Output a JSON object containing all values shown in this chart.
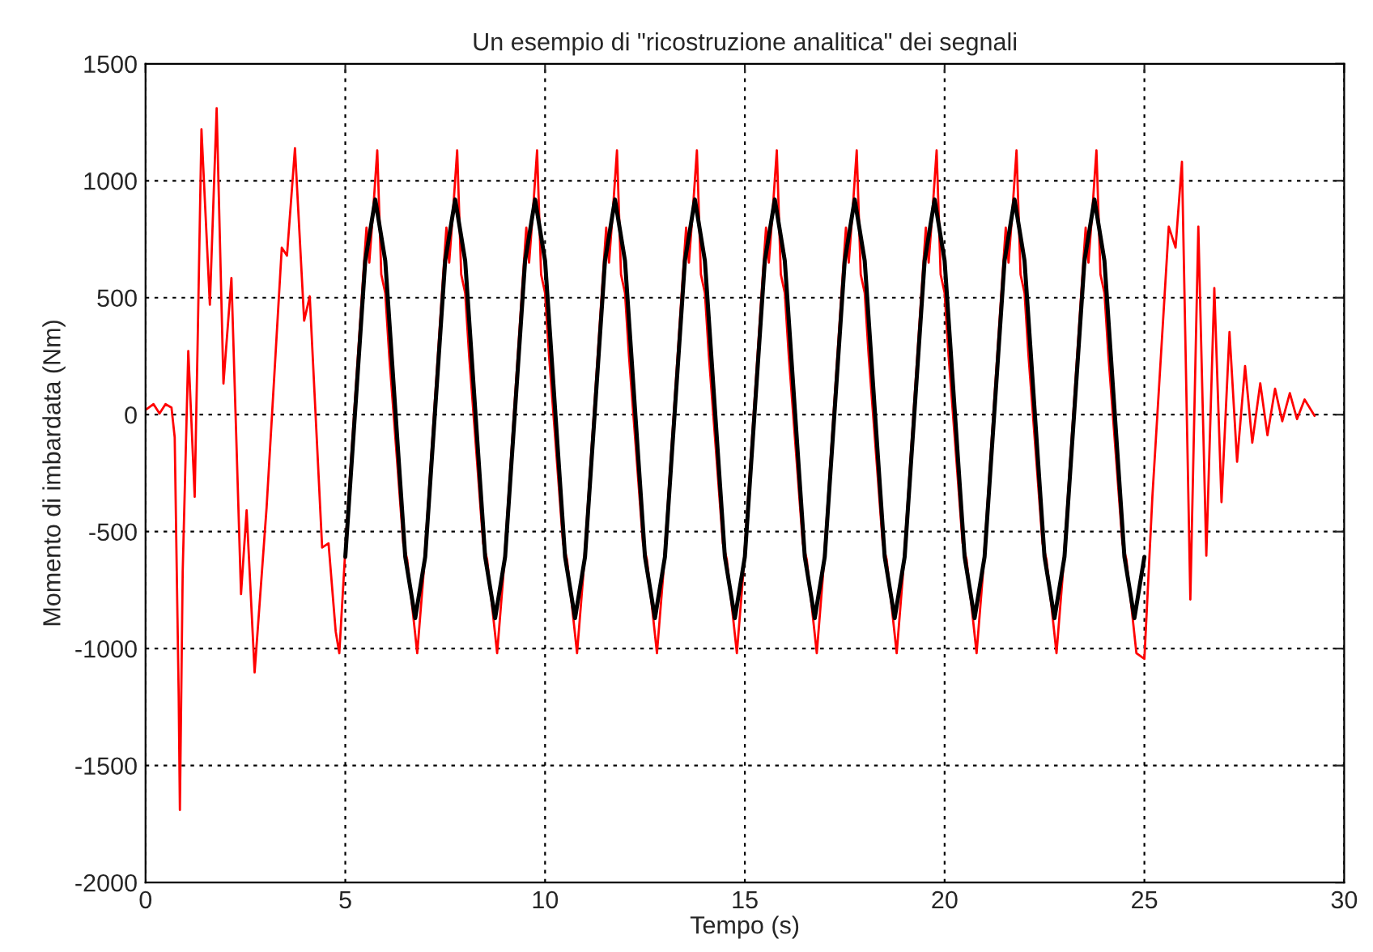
{
  "chart_data": {
    "type": "line",
    "title": "Un esempio di \"ricostruzione analitica\" dei segnali",
    "xlabel": "Tempo (s)",
    "ylabel": "Momento di imbardata (Nm)",
    "xlim": [
      0,
      30
    ],
    "xticks": [
      0,
      5,
      10,
      15,
      20,
      25,
      30
    ],
    "ylim": [
      -2000,
      1500
    ],
    "yticks": [
      -2000,
      -1500,
      -1000,
      -500,
      0,
      500,
      1000,
      1500
    ],
    "grid": true,
    "line_style": "solid",
    "series": [
      {
        "color": "#ff0000",
        "x": [
          0,
          0.2,
          0.35,
          0.5,
          0.65,
          0.73,
          0.83,
          0.86,
          0.93,
          1.07,
          1.1,
          1.23,
          1.3,
          1.4,
          1.61,
          1.78,
          1.95,
          2.15,
          2.39,
          2.53,
          2.73,
          3.03,
          3.41,
          3.54,
          3.74,
          3.97,
          4.11,
          4.42,
          4.58,
          4.76,
          4.85,
          5.03,
          5.45,
          5.53,
          5.6,
          5.7,
          5.8,
          5.9,
          6.0,
          6.1,
          6.45,
          6.55,
          6.7,
          6.8,
          6.95,
          7.45,
          7.53,
          7.6,
          7.7,
          7.8,
          7.9,
          8.0,
          8.1,
          8.45,
          8.55,
          8.7,
          8.8,
          8.95,
          9.45,
          9.53,
          9.6,
          9.7,
          9.8,
          9.9,
          10.0,
          10.1,
          10.45,
          10.55,
          10.7,
          10.8,
          10.95,
          11.45,
          11.53,
          11.6,
          11.7,
          11.8,
          11.9,
          12.0,
          12.1,
          12.45,
          12.55,
          12.7,
          12.8,
          12.95,
          13.45,
          13.53,
          13.6,
          13.7,
          13.8,
          13.9,
          14.0,
          14.1,
          14.45,
          14.55,
          14.7,
          14.8,
          14.95,
          15.45,
          15.53,
          15.6,
          15.7,
          15.8,
          15.9,
          16.0,
          16.1,
          16.45,
          16.55,
          16.7,
          16.8,
          16.95,
          17.45,
          17.53,
          17.6,
          17.7,
          17.8,
          17.9,
          18.0,
          18.1,
          18.45,
          18.55,
          18.7,
          18.8,
          18.95,
          19.45,
          19.53,
          19.6,
          19.7,
          19.8,
          19.9,
          20.0,
          20.1,
          20.45,
          20.55,
          20.7,
          20.8,
          20.95,
          21.45,
          21.53,
          21.6,
          21.7,
          21.8,
          21.9,
          22.0,
          22.1,
          22.45,
          22.55,
          22.7,
          22.8,
          22.95,
          23.45,
          23.53,
          23.6,
          23.7,
          23.8,
          23.9,
          24.0,
          24.1,
          24.45,
          24.55,
          24.7,
          24.8,
          25.0,
          25.2,
          25.61,
          25.78,
          25.94,
          26.15,
          26.35,
          26.55,
          26.75,
          26.93,
          27.13,
          27.32,
          27.52,
          27.7,
          27.9,
          28.08,
          28.27,
          28.45,
          28.64,
          28.82,
          29.01,
          29.26
        ],
        "values": [
          20,
          45,
          5,
          45,
          30,
          -97,
          -1205,
          -1690,
          -672,
          272,
          160,
          -351,
          272,
          1220,
          470,
          1310,
          133,
          584,
          -767,
          -409,
          -1102,
          -397,
          714,
          680,
          1139,
          402,
          506,
          -568,
          -550,
          -928,
          -1020,
          -490,
          600,
          800,
          650,
          880,
          1130,
          600,
          520,
          250,
          -550,
          -620,
          -860,
          -1020,
          -700,
          600,
          800,
          650,
          880,
          1130,
          600,
          520,
          250,
          -550,
          -620,
          -860,
          -1020,
          -700,
          600,
          800,
          650,
          880,
          1130,
          600,
          520,
          250,
          -550,
          -620,
          -860,
          -1020,
          -700,
          600,
          800,
          650,
          880,
          1130,
          600,
          520,
          250,
          -550,
          -620,
          -860,
          -1020,
          -700,
          600,
          800,
          650,
          880,
          1130,
          600,
          520,
          250,
          -550,
          -620,
          -860,
          -1020,
          -700,
          600,
          800,
          650,
          880,
          1130,
          600,
          520,
          250,
          -550,
          -620,
          -860,
          -1020,
          -700,
          600,
          800,
          650,
          880,
          1130,
          600,
          520,
          250,
          -550,
          -620,
          -860,
          -1020,
          -700,
          600,
          800,
          650,
          880,
          1130,
          600,
          520,
          250,
          -550,
          -620,
          -860,
          -1020,
          -700,
          600,
          800,
          650,
          880,
          1130,
          600,
          520,
          250,
          -550,
          -620,
          -860,
          -1020,
          -700,
          600,
          800,
          650,
          880,
          1130,
          600,
          520,
          250,
          -550,
          -620,
          -860,
          -1020,
          -1044,
          -351,
          804,
          714,
          1081,
          -790,
          804,
          -603,
          541,
          -374,
          353,
          -201,
          208,
          -120,
          134,
          -88,
          111,
          -28,
          92,
          -19,
          65,
          -5
        ]
      },
      {
        "color": "#000000",
        "x": [
          5.0,
          5.25,
          5.5,
          5.75,
          6.0,
          6.25,
          6.5,
          6.75,
          7.0,
          7.25,
          7.5,
          7.75,
          8.0,
          8.25,
          8.5,
          8.75,
          9.0,
          9.25,
          9.5,
          9.75,
          10.0,
          10.25,
          10.5,
          10.75,
          11.0,
          11.25,
          11.5,
          11.75,
          12.0,
          12.25,
          12.5,
          12.75,
          13.0,
          13.25,
          13.5,
          13.75,
          14.0,
          14.25,
          14.5,
          14.75,
          15.0,
          15.25,
          15.5,
          15.75,
          16.0,
          16.25,
          16.5,
          16.75,
          17.0,
          17.25,
          17.5,
          17.75,
          18.0,
          18.25,
          18.5,
          18.75,
          19.0,
          19.25,
          19.5,
          19.75,
          20.0,
          20.25,
          20.5,
          20.75,
          21.0,
          21.25,
          21.5,
          21.75,
          22.0,
          22.25,
          22.5,
          22.75,
          23.0,
          23.25,
          23.5,
          23.75,
          24.0,
          24.25,
          24.5,
          24.75,
          25.0
        ],
        "values": [
          -608,
          25,
          658,
          920,
          658,
          25,
          -608,
          -870,
          -608,
          25,
          658,
          920,
          658,
          25,
          -608,
          -870,
          -608,
          25,
          658,
          920,
          658,
          25,
          -608,
          -870,
          -608,
          25,
          658,
          920,
          658,
          25,
          -608,
          -870,
          -608,
          25,
          658,
          920,
          658,
          25,
          -608,
          -870,
          -608,
          25,
          658,
          920,
          658,
          25,
          -608,
          -870,
          -608,
          25,
          658,
          920,
          658,
          25,
          -608,
          -870,
          -608,
          25,
          658,
          920,
          658,
          25,
          -608,
          -870,
          -608,
          25,
          658,
          920,
          658,
          25,
          -608,
          -870,
          -608,
          25,
          658,
          920,
          658,
          25,
          -608,
          -870,
          -608
        ]
      }
    ]
  }
}
